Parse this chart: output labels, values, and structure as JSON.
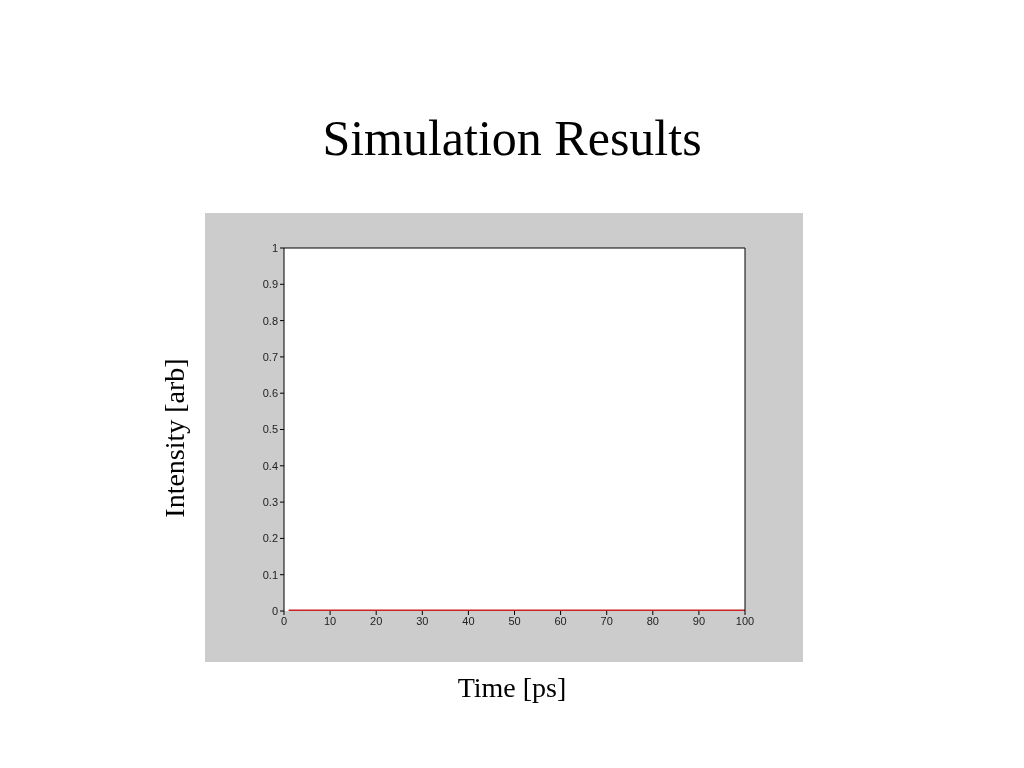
{
  "chart_data": {
    "type": "line",
    "title": "Simulation Results",
    "xlabel": "Time [ps]",
    "ylabel": "Intensity [arb]",
    "series": [
      {
        "color": "#cc2222",
        "x": [
          1,
          100
        ],
        "values": [
          0,
          0
        ]
      }
    ],
    "xlim": [
      0,
      100
    ],
    "xticks": [
      0,
      10,
      20,
      30,
      40,
      50,
      60,
      70,
      80,
      90,
      100
    ],
    "ylim": [
      0,
      1
    ],
    "yticks": [
      0,
      0.1,
      0.2,
      0.3,
      0.4,
      0.5,
      0.6,
      0.7,
      0.8,
      0.9,
      1
    ],
    "grid": false,
    "legend": false,
    "marker": "none",
    "line_style": "solid"
  }
}
